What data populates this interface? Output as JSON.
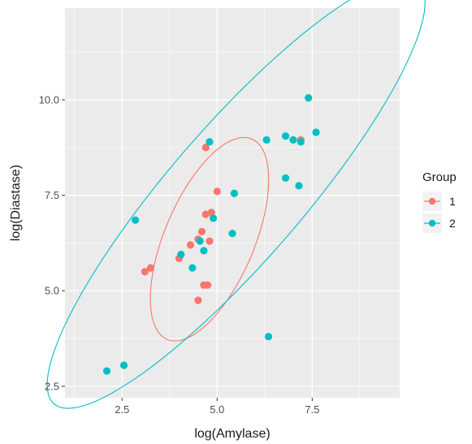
{
  "chart_data": {
    "type": "scatter",
    "xlabel": "log(Amylase)",
    "ylabel": "log(Diastase)",
    "xlim": [
      1.0,
      9.8
    ],
    "ylim": [
      2.2,
      12.4
    ],
    "xticks": [
      2.5,
      5.0,
      7.5
    ],
    "yticks": [
      2.5,
      5.0,
      7.5,
      10.0
    ],
    "x_tick_labels": [
      "2.5",
      "5.0",
      "7.5"
    ],
    "y_tick_labels": [
      "2.5",
      "5.0",
      "7.5",
      "10.0"
    ],
    "grid": true,
    "legend": {
      "title": "Group",
      "position": "right"
    },
    "series": [
      {
        "name": "1",
        "color": "#F8766D",
        "points": [
          [
            3.1,
            5.5
          ],
          [
            3.25,
            5.6
          ],
          [
            4.0,
            5.85
          ],
          [
            4.3,
            6.2
          ],
          [
            4.5,
            6.35
          ],
          [
            4.6,
            6.55
          ],
          [
            4.8,
            6.3
          ],
          [
            4.7,
            7.0
          ],
          [
            4.85,
            7.05
          ],
          [
            5.0,
            7.6
          ],
          [
            4.7,
            8.75
          ],
          [
            4.5,
            4.75
          ],
          [
            4.65,
            5.15
          ],
          [
            4.75,
            5.15
          ],
          [
            7.2,
            8.95
          ]
        ],
        "ellipse": {
          "cx": 4.8,
          "cy": 6.35,
          "a": 2.85,
          "b": 1.18,
          "angle_deg": 67
        }
      },
      {
        "name": "2",
        "color": "#00BFC4",
        "points": [
          [
            2.1,
            2.9
          ],
          [
            2.55,
            3.05
          ],
          [
            2.85,
            6.85
          ],
          [
            4.05,
            5.95
          ],
          [
            4.35,
            5.6
          ],
          [
            4.55,
            6.3
          ],
          [
            4.65,
            6.05
          ],
          [
            4.9,
            6.9
          ],
          [
            4.8,
            8.9
          ],
          [
            5.4,
            6.5
          ],
          [
            5.45,
            7.55
          ],
          [
            6.3,
            8.95
          ],
          [
            6.8,
            9.05
          ],
          [
            7.0,
            8.95
          ],
          [
            7.2,
            8.9
          ],
          [
            7.4,
            10.05
          ],
          [
            7.6,
            9.15
          ],
          [
            6.8,
            7.95
          ],
          [
            7.15,
            7.75
          ],
          [
            6.35,
            3.8
          ]
        ],
        "ellipse": {
          "cx": 5.5,
          "cy": 7.55,
          "a": 7.3,
          "b": 1.75,
          "angle_deg": 49
        }
      }
    ]
  }
}
